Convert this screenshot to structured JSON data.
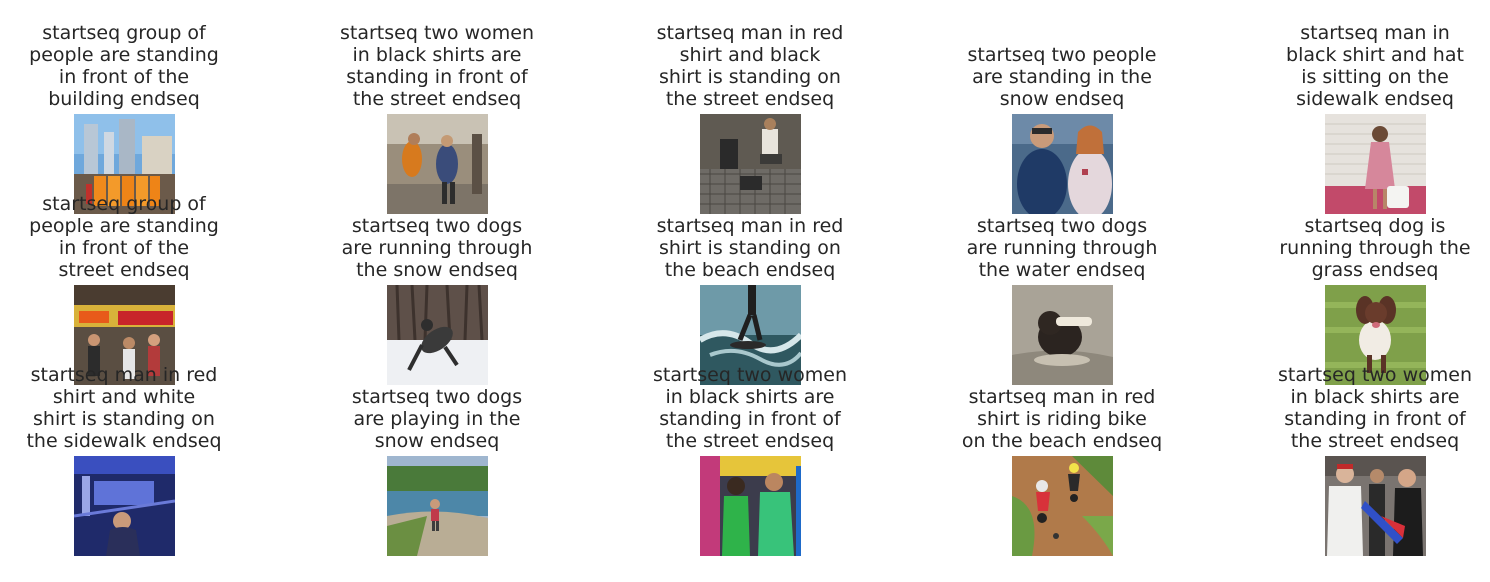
{
  "cells": [
    {
      "lines": [
        "startseq group of",
        "people are standing",
        "in front of the",
        "building endseq"
      ],
      "image": "city-buildings-orange-portable-toilets"
    },
    {
      "lines": [
        "startseq two women",
        "in black shirts are",
        "standing in front of",
        "the street endseq"
      ],
      "image": "street-people-walking"
    },
    {
      "lines": [
        "startseq man in red",
        "shirt and black",
        "shirt is standing on",
        "the street endseq"
      ],
      "image": "men-on-grate-street"
    },
    {
      "lines": [
        "startseq two people",
        "are standing in the",
        "snow endseq"
      ],
      "image": "police-officer-and-woman"
    },
    {
      "lines": [
        "startseq man in",
        "black shirt and hat",
        "is sitting on the",
        "sidewalk endseq"
      ],
      "image": "girl-in-pink-with-bucket"
    },
    {
      "lines": [
        "startseq group of",
        "people are standing",
        "in front of the",
        "street endseq"
      ],
      "image": "kettle-corn-stand-crowd"
    },
    {
      "lines": [
        "startseq two dogs",
        "are running through",
        "the snow endseq"
      ],
      "image": "dog-running-in-snow"
    },
    {
      "lines": [
        "startseq man in red",
        "shirt is standing on",
        "the beach endseq"
      ],
      "image": "surfer-on-wave"
    },
    {
      "lines": [
        "startseq two dogs",
        "are running through",
        "the water endseq"
      ],
      "image": "dog-with-toy-in-water"
    },
    {
      "lines": [
        "startseq dog is",
        "running through the",
        "grass endseq"
      ],
      "image": "spaniel-in-grass"
    },
    {
      "lines": [
        "startseq man in red",
        "shirt and white",
        "shirt is standing on",
        "the sidewalk endseq"
      ],
      "image": "person-on-blue-train"
    },
    {
      "lines": [
        "startseq two dogs",
        "are playing in the",
        "snow endseq"
      ],
      "image": "child-by-pond"
    },
    {
      "lines": [
        "startseq two women",
        "in black shirts are",
        "standing in front of",
        "the street endseq"
      ],
      "image": "women-green-tops-crowd"
    },
    {
      "lines": [
        "startseq man in red",
        "shirt is riding bike",
        "on the beach endseq"
      ],
      "image": "dirt-bike-racers"
    },
    {
      "lines": [
        "startseq two women",
        "in black shirts are",
        "standing in front of",
        "the street endseq"
      ],
      "image": "people-with-flag"
    }
  ]
}
